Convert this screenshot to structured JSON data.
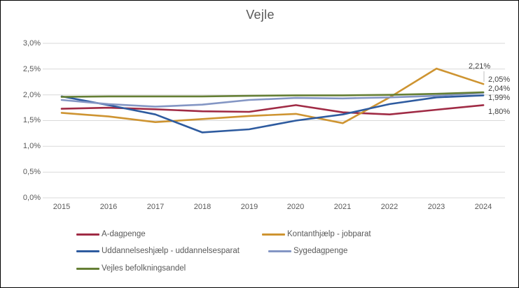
{
  "title": "Vejle",
  "chart_data": {
    "type": "line",
    "x_labels": [
      "2015",
      "2016",
      "2017",
      "2018",
      "2019",
      "2020",
      "2021",
      "2022",
      "2023",
      "2024"
    ],
    "y_ticks": [
      "3,0%",
      "2,5%",
      "2,0%",
      "1,5%",
      "1,0%",
      "0,5%",
      "0,0%"
    ],
    "y_tick_values": [
      3.0,
      2.5,
      2.0,
      1.5,
      1.0,
      0.5,
      0.0
    ],
    "ylim": [
      0.0,
      3.0
    ],
    "grid": true,
    "legend_position": "bottom",
    "series": [
      {
        "name": "A-dagpenge",
        "color": "#A02B45",
        "values": [
          1.73,
          1.75,
          1.72,
          1.68,
          1.67,
          1.8,
          1.66,
          1.62,
          1.71,
          1.8
        ]
      },
      {
        "name": "Kontanthjælp - jobparat",
        "color": "#CE9431",
        "values": [
          1.65,
          1.58,
          1.47,
          1.53,
          1.59,
          1.63,
          1.45,
          1.95,
          2.51,
          2.21
        ]
      },
      {
        "name": "Uddannelseshjælp - uddannelsesparat",
        "color": "#2E5B9F",
        "values": [
          1.97,
          1.8,
          1.62,
          1.27,
          1.33,
          1.5,
          1.62,
          1.82,
          1.95,
          1.99
        ]
      },
      {
        "name": "Sygedagpenge",
        "color": "#8496C4",
        "values": [
          1.9,
          1.82,
          1.77,
          1.81,
          1.9,
          1.94,
          1.93,
          1.95,
          1.98,
          2.04
        ]
      },
      {
        "name": "Vejles befolkningsandel",
        "color": "#657F35",
        "values": [
          1.96,
          1.97,
          1.97,
          1.97,
          1.98,
          1.99,
          1.99,
          2.0,
          2.02,
          2.05
        ]
      }
    ],
    "end_labels": [
      {
        "text": "2,21%",
        "value": 2.21
      },
      {
        "text": "2,05%",
        "value": 2.05
      },
      {
        "text": "2,04%",
        "value": 2.04
      },
      {
        "text": "1,99%",
        "value": 1.99
      },
      {
        "text": "1,80%",
        "value": 1.8
      }
    ],
    "colors": {
      "gridline": "#D9D9D9",
      "text": "#595959",
      "data_label": "#3F3F3F",
      "leader_line": "#BFBFBF"
    }
  }
}
